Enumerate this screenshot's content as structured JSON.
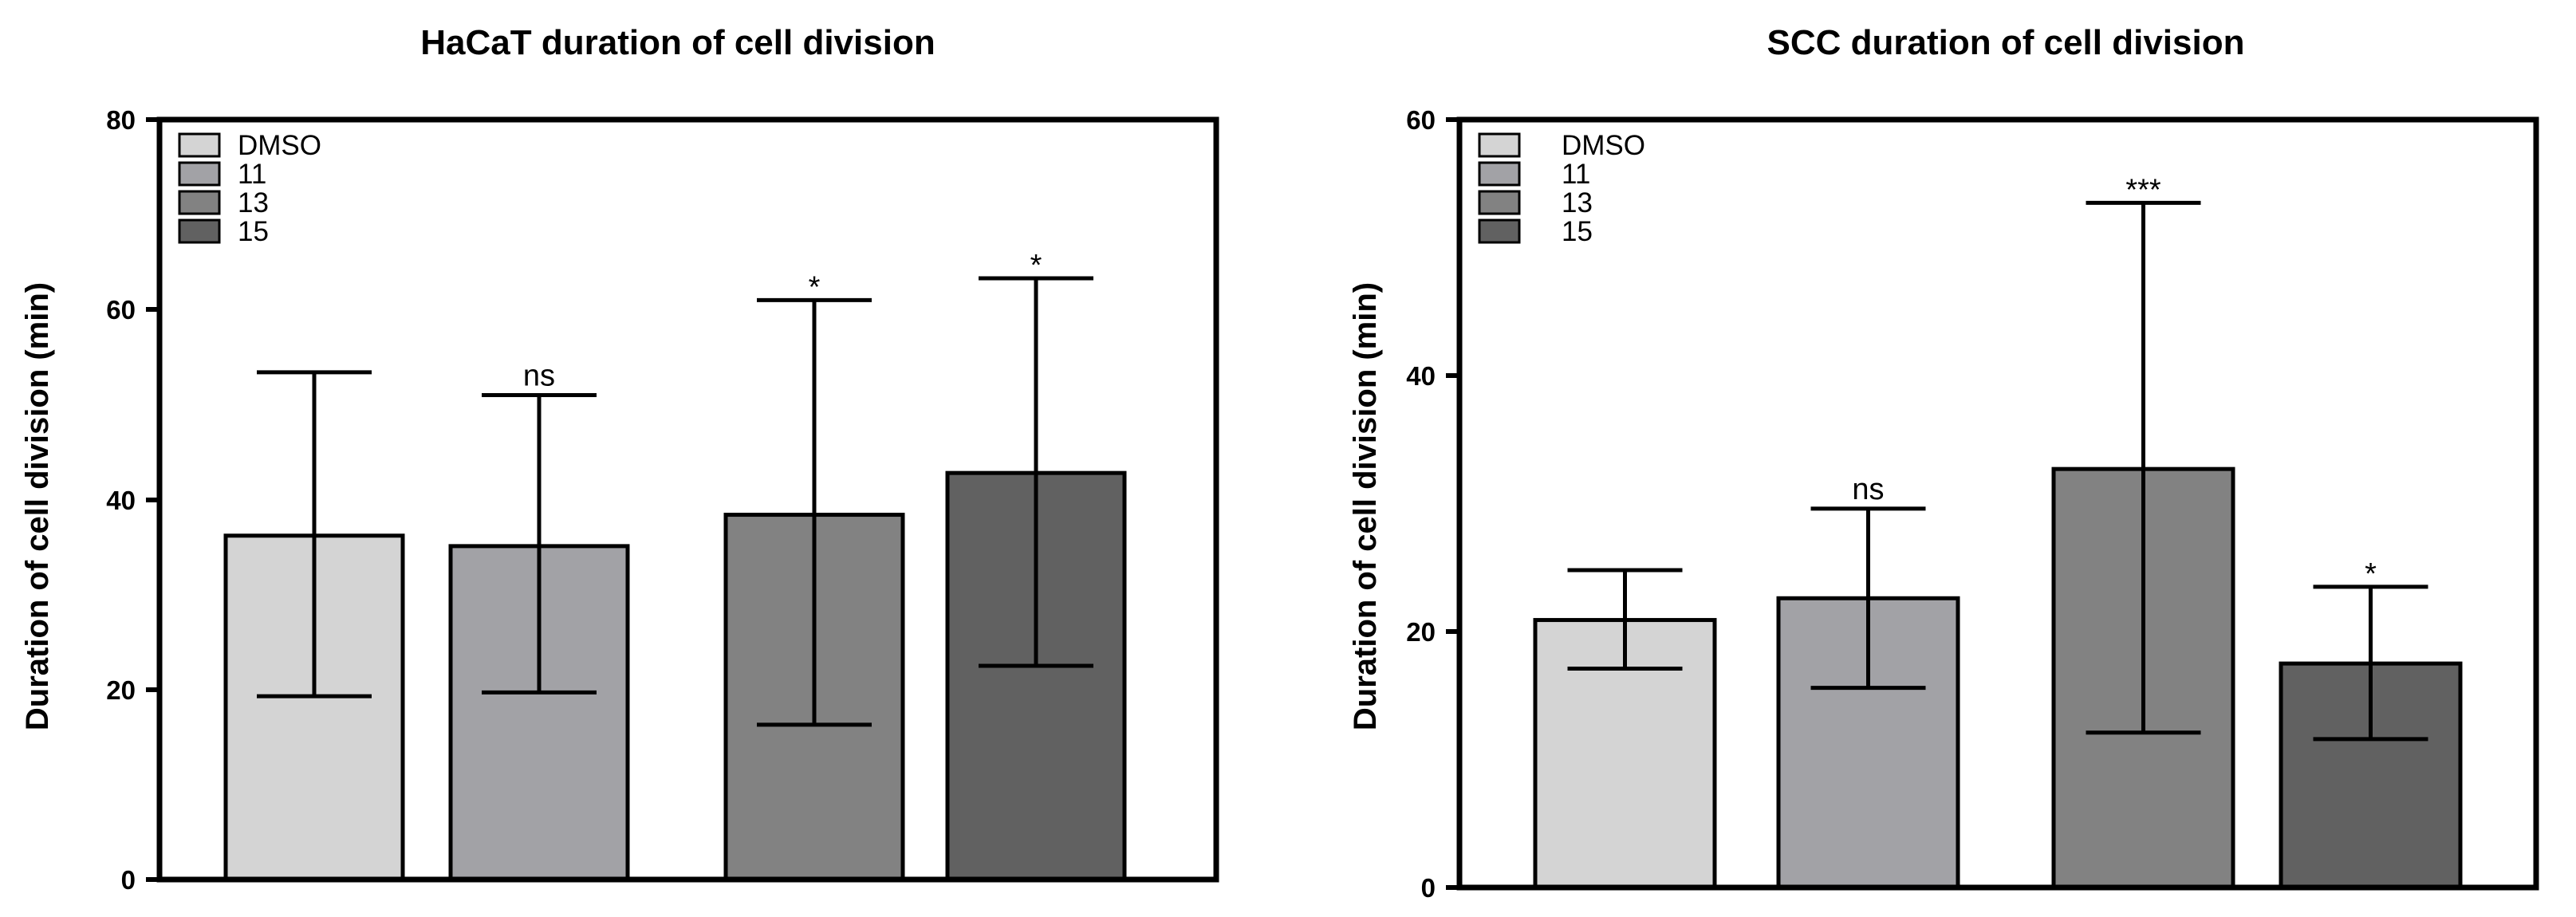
{
  "chart_data": [
    {
      "type": "bar",
      "title": "HaCaT duration of cell division",
      "xlabel": "",
      "ylabel": "Duration of cell division (min)",
      "ylim": [
        0,
        80
      ],
      "yticks": [
        0,
        20,
        40,
        60,
        80
      ],
      "ytick_labels": [
        "0",
        "20",
        "40",
        "60",
        "80"
      ],
      "legend_position": "top-left",
      "categories": [
        "DMSO",
        "11",
        "13",
        "15"
      ],
      "colors": [
        "#d4d4d4",
        "#a2a2a6",
        "#828282",
        "#616161"
      ],
      "values": [
        36.2,
        35.1,
        38.4,
        42.8
      ],
      "error_low": [
        19.3,
        19.7,
        16.3,
        22.5
      ],
      "error_high": [
        53.4,
        51.0,
        61.0,
        63.3
      ],
      "annotations": [
        "",
        "ns",
        "*",
        "*"
      ]
    },
    {
      "type": "bar",
      "title": "SCC duration of cell division",
      "xlabel": "",
      "ylabel": "Duration of cell division (min)",
      "ylim": [
        0,
        60
      ],
      "yticks": [
        0,
        20,
        40,
        60
      ],
      "ytick_labels": [
        "0",
        "20",
        "40",
        "60"
      ],
      "legend_position": "top-left",
      "categories": [
        "DMSO",
        "11",
        "13",
        "15"
      ],
      "colors": [
        "#d4d4d4",
        "#a2a2a6",
        "#828282",
        "#616161"
      ],
      "values": [
        20.9,
        22.6,
        32.7,
        17.5
      ],
      "error_low": [
        17.1,
        15.6,
        12.1,
        11.6
      ],
      "error_high": [
        24.8,
        29.6,
        53.5,
        23.5
      ],
      "annotations": [
        "",
        "ns",
        "***",
        "*"
      ]
    }
  ]
}
